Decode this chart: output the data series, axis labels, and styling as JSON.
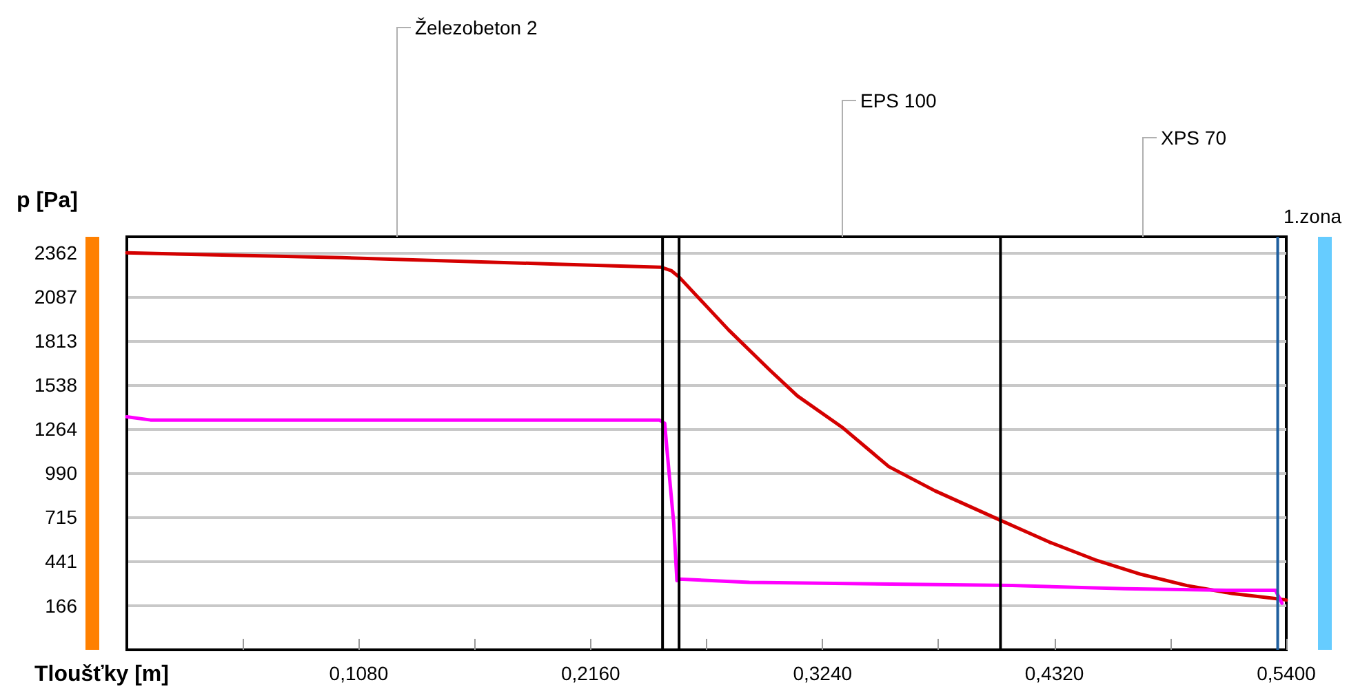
{
  "chart_data": {
    "type": "line",
    "xlabel": "Tloušťky [m]",
    "ylabel": "p [Pa]",
    "xlim": [
      0,
      0.54
    ],
    "ylim": [
      -110,
      2460
    ],
    "xticks": [
      {
        "value": 0.054,
        "label": null
      },
      {
        "value": 0.108,
        "label": "0,1080"
      },
      {
        "value": 0.162,
        "label": null
      },
      {
        "value": 0.216,
        "label": "0,2160"
      },
      {
        "value": 0.27,
        "label": null
      },
      {
        "value": 0.324,
        "label": "0,3240"
      },
      {
        "value": 0.378,
        "label": null
      },
      {
        "value": 0.432,
        "label": "0,4320"
      },
      {
        "value": 0.486,
        "label": null
      },
      {
        "value": 0.54,
        "label": "0,5400"
      }
    ],
    "yticks": [
      166,
      441,
      715,
      990,
      1264,
      1538,
      1813,
      2087,
      2362
    ],
    "grid": "y",
    "marker": "none",
    "line_style": "solid",
    "series": [
      {
        "color": "#d40000",
        "x": [
          0,
          0.1,
          0.2,
          0.249,
          0.2535,
          0.2572,
          0.2803,
          0.2995,
          0.3123,
          0.3336,
          0.3549,
          0.3763,
          0.4062,
          0.4297,
          0.451,
          0.4723,
          0.4937,
          0.515,
          0.5342,
          0.54
        ],
        "values": [
          2360,
          2330,
          2290,
          2270,
          2250,
          2210,
          1880,
          1630,
          1470,
          1270,
          1030,
          880,
          700,
          560,
          450,
          360,
          290,
          240,
          210,
          200
        ]
      },
      {
        "color": "#ff00ff",
        "x": [
          0,
          0.011,
          0.248,
          0.2505,
          0.2516,
          0.2547,
          0.2562,
          0.2572,
          0.29,
          0.4124,
          0.4649,
          0.5171,
          0.535,
          0.538
        ],
        "values": [
          1340,
          1320,
          1320,
          1300,
          1130,
          680,
          320,
          330,
          310,
          290,
          270,
          260,
          260,
          180
        ]
      }
    ],
    "ref_lines": [
      {
        "axis": "x",
        "value": 0.2495,
        "color": "#000000"
      },
      {
        "axis": "x",
        "value": 0.2572,
        "color": "#000000"
      },
      {
        "axis": "x",
        "value": 0.4069,
        "color": "#000000"
      },
      {
        "axis": "x",
        "value": 0.536,
        "color": "#1f5f9f"
      }
    ],
    "annotations": [
      "Železobeton 2",
      "EPS 100",
      "XPS 70",
      "1.zona"
    ]
  }
}
